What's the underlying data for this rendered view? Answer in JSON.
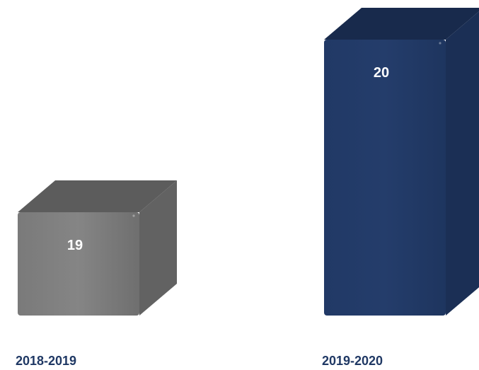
{
  "chart_data": {
    "type": "bar",
    "style": "3d-box",
    "categories": [
      "2018-2019",
      "2019-2020"
    ],
    "values": [
      19,
      20
    ],
    "data_labels": [
      "19",
      "20"
    ],
    "colors": [
      "#808080",
      "#223a68"
    ],
    "grid": false,
    "legend": "none"
  }
}
